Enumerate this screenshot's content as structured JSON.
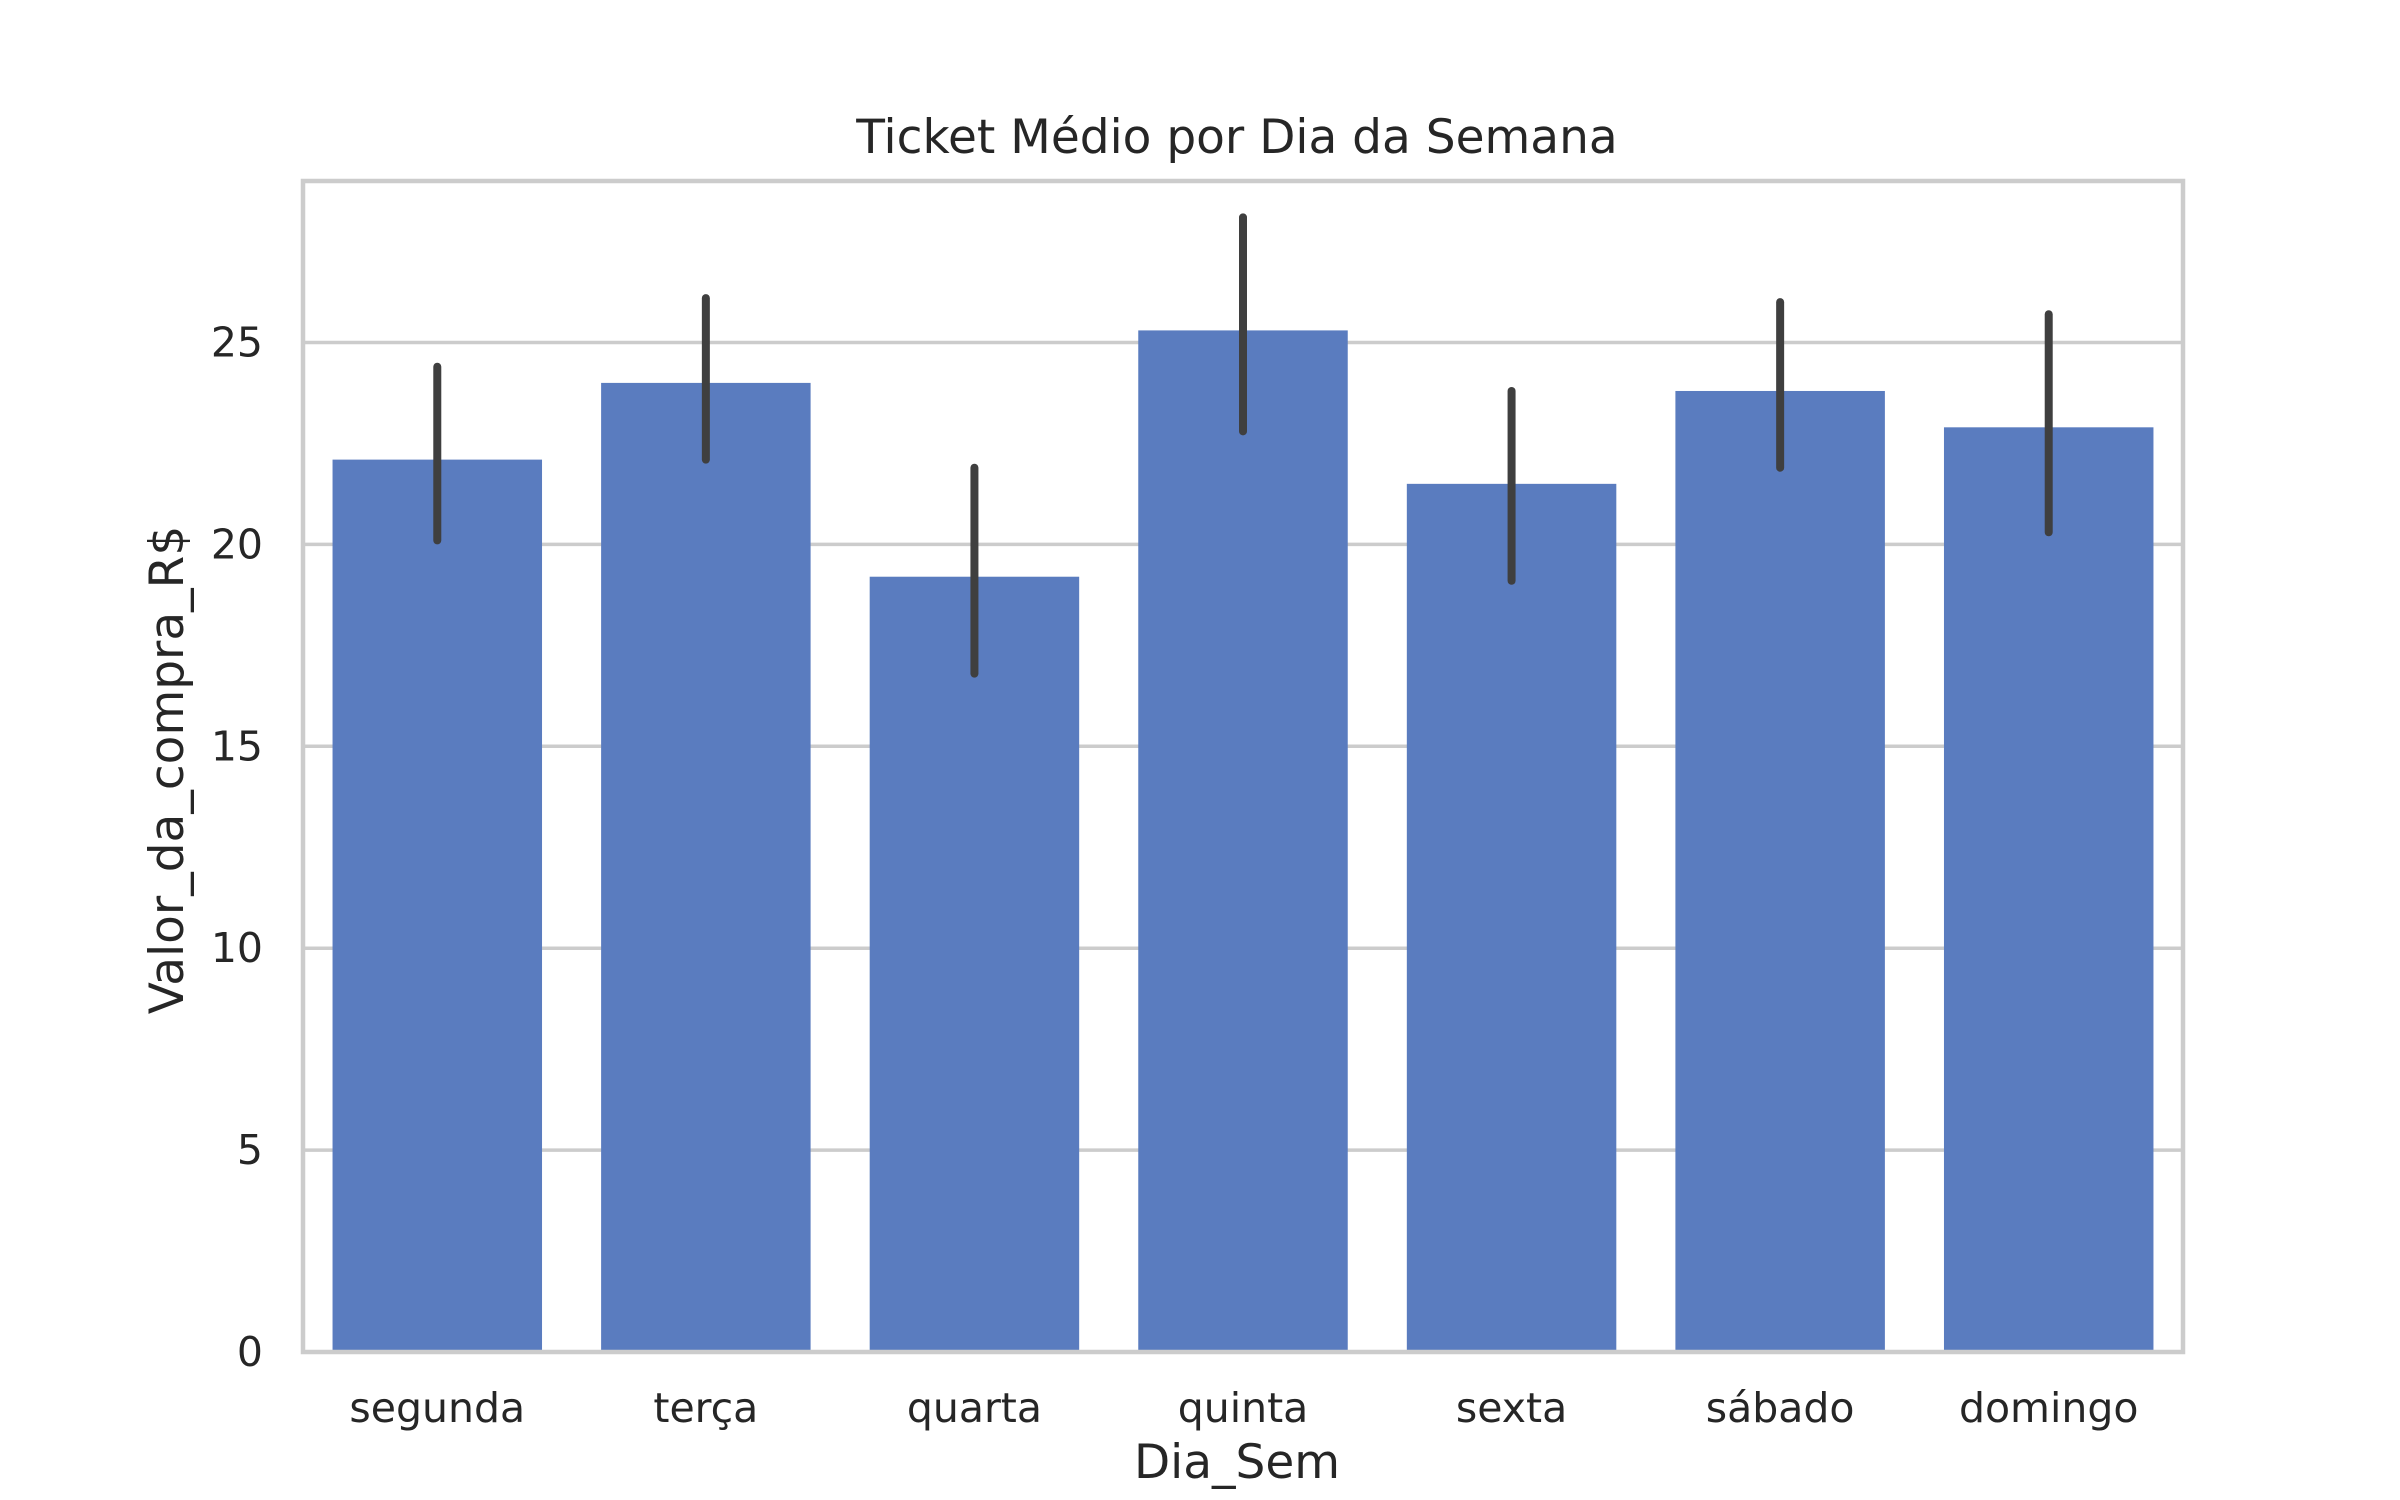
{
  "colors": {
    "bar": "#5a7cbf",
    "error_bar": "#3f3f3f",
    "grid": "#cccccc",
    "text": "#262626",
    "background": "#ffffff"
  },
  "chart_data": {
    "type": "bar",
    "title": "Ticket Médio por Dia da Semana",
    "xlabel": "Dia_Sem",
    "ylabel": "Valor_da_compra_R$",
    "categories": [
      "segunda",
      "terça",
      "quarta",
      "quinta",
      "sexta",
      "sábado",
      "domingo"
    ],
    "values": [
      22.1,
      24.0,
      19.2,
      25.3,
      21.5,
      23.8,
      22.9
    ],
    "error_low": [
      20.1,
      22.1,
      16.8,
      22.8,
      19.1,
      21.9,
      20.3
    ],
    "error_high": [
      24.4,
      26.1,
      21.9,
      28.1,
      23.8,
      26.0,
      25.7
    ],
    "ylim": [
      0,
      29
    ],
    "yticks": [
      0,
      5,
      10,
      15,
      20,
      25
    ],
    "ytick_labels": [
      "0",
      "5",
      "10",
      "15",
      "20",
      "25"
    ],
    "grid": true,
    "grid_axis": "y"
  }
}
